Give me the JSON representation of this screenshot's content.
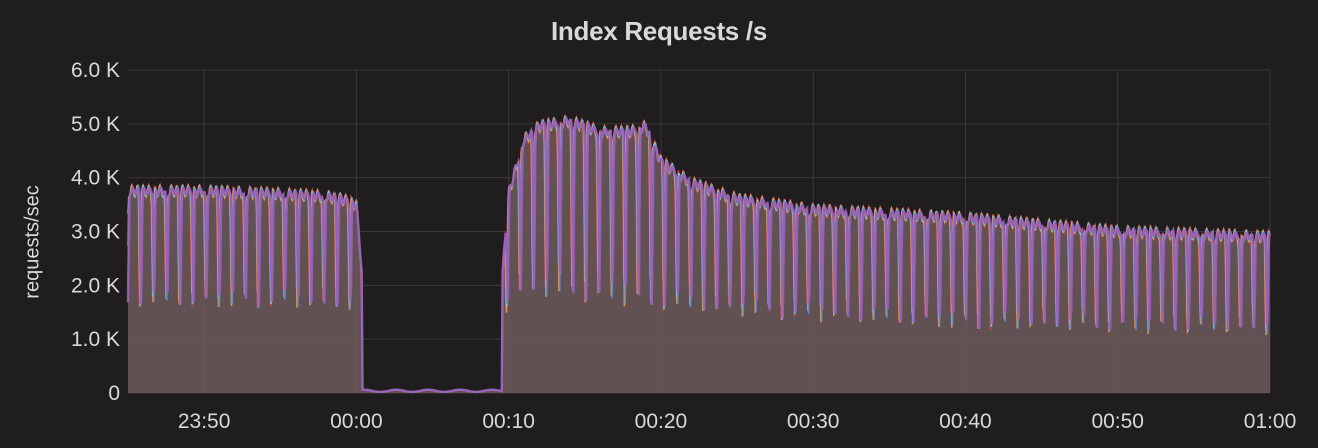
{
  "colors": {
    "background": "#1f1d1d",
    "grid": "#3a3838",
    "text": "#d8d9da",
    "fill": "#6e5a5c",
    "series": [
      "#9b5fb5",
      "#5f8ed0",
      "#6ad3e8",
      "#e8a050",
      "#c04a4a"
    ]
  },
  "chart_data": {
    "type": "line",
    "title": "Index Requests /s",
    "ylabel": "requests/sec",
    "xlabel": "",
    "x_unit": "time",
    "x_range": [
      "23:45",
      "01:00"
    ],
    "ylim": [
      0,
      6000
    ],
    "y_ticks": [
      0,
      1000,
      2000,
      3000,
      4000,
      5000,
      6000
    ],
    "y_tick_labels": [
      "0",
      "1.0 K",
      "2.0 K",
      "3.0 K",
      "4.0 K",
      "5.0 K",
      "6.0 K"
    ],
    "x_ticks": [
      "23:50",
      "00:00",
      "00:10",
      "00:20",
      "00:30",
      "00:40",
      "00:50",
      "01:00"
    ],
    "grid": true,
    "legend": "none",
    "stacked_fill": true,
    "series_count": 5,
    "envelope": {
      "time": [
        "23:45",
        "23:50",
        "23:55",
        "23:58",
        "23:59",
        "00:00",
        "00:01",
        "00:09",
        "00:10",
        "00:11",
        "00:12",
        "00:14",
        "00:16",
        "00:18",
        "00:19",
        "00:20",
        "00:22",
        "00:25",
        "00:30",
        "00:40",
        "00:50",
        "01:00"
      ],
      "peak": [
        3750,
        3750,
        3700,
        3650,
        3600,
        3500,
        0,
        0,
        3700,
        4700,
        4950,
        5050,
        4850,
        4850,
        4950,
        4300,
        3900,
        3600,
        3400,
        3250,
        3000,
        2900
      ],
      "trough": [
        1650,
        1650,
        1650,
        1600,
        1600,
        1550,
        0,
        0,
        1800,
        1850,
        1850,
        1800,
        1750,
        1700,
        1650,
        1600,
        1550,
        1500,
        1400,
        1250,
        1200,
        1150
      ]
    }
  }
}
